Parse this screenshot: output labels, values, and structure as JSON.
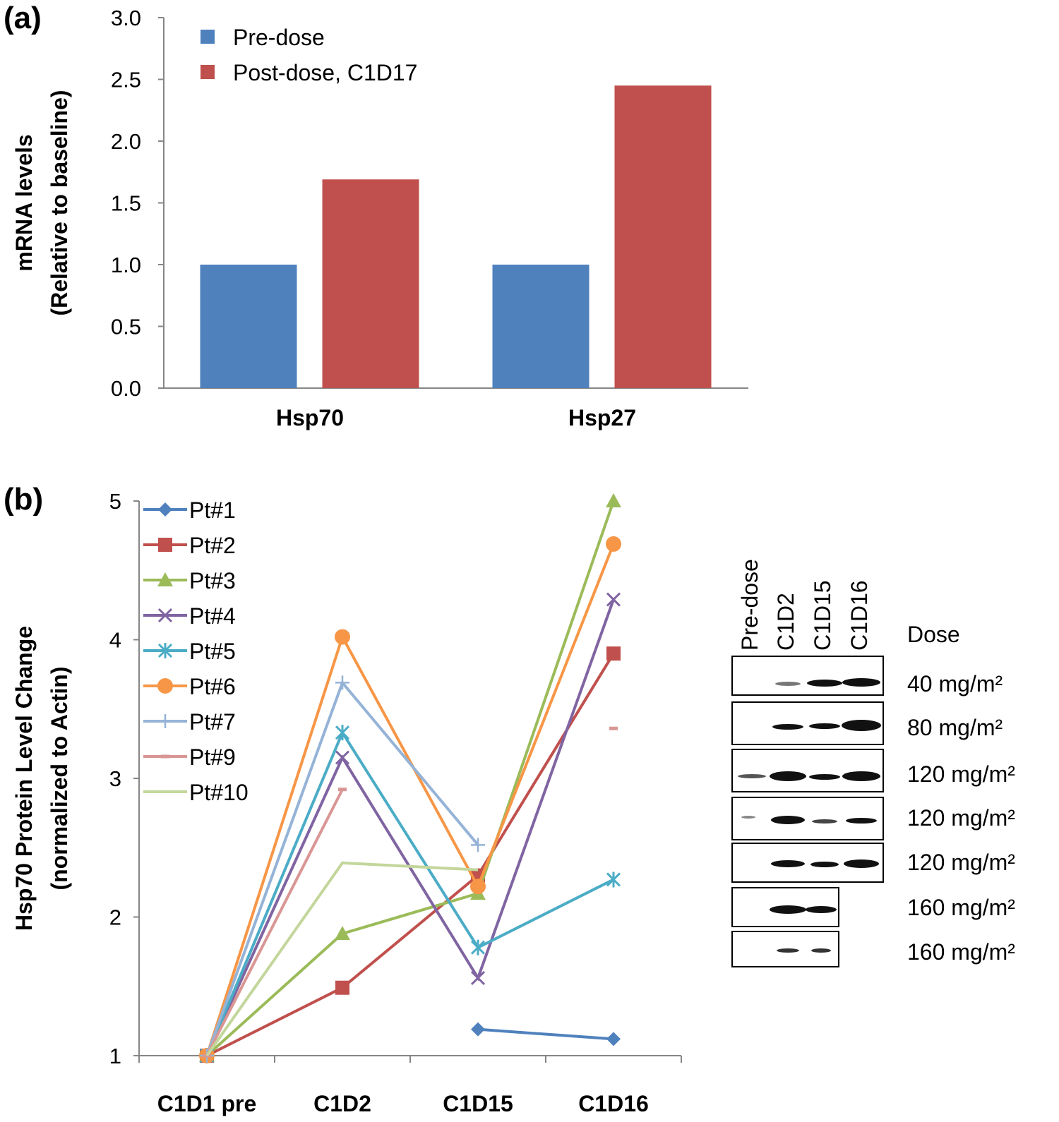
{
  "chart_data": [
    {
      "type": "bar",
      "panel_label": "(a)",
      "y_label": [
        "mRNA levels",
        "(Relative to baseline)"
      ],
      "categories": [
        "Hsp70",
        "Hsp27"
      ],
      "series": [
        {
          "name": "Pre-dose",
          "color": "#4f81bd",
          "values": [
            1.0,
            1.0
          ]
        },
        {
          "name": "Post-dose, C1D17",
          "color": "#c0504d",
          "values": [
            1.69,
            2.45
          ]
        }
      ],
      "ylim": [
        0,
        3
      ],
      "yticks": [
        {
          "value": 0,
          "label": "0.0"
        },
        {
          "value": 0.5,
          "label": "0.5"
        },
        {
          "value": 1,
          "label": "1.0"
        },
        {
          "value": 1.5,
          "label": "1.5"
        },
        {
          "value": 2,
          "label": "2.0"
        },
        {
          "value": 2.5,
          "label": "2.5"
        },
        {
          "value": 3,
          "label": "3.0"
        }
      ]
    },
    {
      "type": "line",
      "panel_label": "(b)",
      "y_label": [
        "Hsp70 Protein Level Change",
        "(normalized to Actin)"
      ],
      "categories": [
        "C1D1 pre",
        "C1D2",
        "C1D15",
        "C1D16"
      ],
      "series": [
        {
          "name": "Pt#1",
          "color": "#4f81bd",
          "marker": "diamond",
          "values": [
            1,
            null,
            1.19,
            1.12
          ]
        },
        {
          "name": "Pt#2",
          "color": "#c0504d",
          "marker": "square",
          "values": [
            1,
            1.49,
            2.3,
            3.9
          ]
        },
        {
          "name": "Pt#3",
          "color": "#9bbb59",
          "marker": "triangle",
          "values": [
            1,
            1.88,
            2.17,
            5.0
          ]
        },
        {
          "name": "Pt#4",
          "color": "#8064a2",
          "marker": "x",
          "values": [
            1,
            3.15,
            1.56,
            4.29
          ]
        },
        {
          "name": "Pt#5",
          "color": "#4bacc6",
          "marker": "star",
          "values": [
            1,
            3.33,
            1.78,
            2.27
          ]
        },
        {
          "name": "Pt#6",
          "color": "#f79646",
          "marker": "circle",
          "values": [
            1,
            4.02,
            2.22,
            4.69
          ]
        },
        {
          "name": "Pt#7",
          "color": "#95b3d7",
          "marker": "plus",
          "values": [
            1,
            3.69,
            2.52,
            null
          ]
        },
        {
          "name": "Pt#9",
          "color": "#d99694",
          "marker": "dash",
          "values": [
            1,
            2.92,
            null,
            3.36
          ]
        },
        {
          "name": "Pt#10",
          "color": "#c3d69b",
          "marker": "none",
          "values": [
            1,
            2.39,
            2.34,
            null
          ]
        }
      ],
      "ylim": [
        1,
        5
      ],
      "yticks": [
        1,
        2,
        3,
        4,
        5
      ]
    }
  ],
  "blot": {
    "lanes": [
      "Pre-dose",
      "C1D2",
      "C1D15",
      "C1D16"
    ],
    "dose_header": "Dose",
    "doses": [
      "40 mg/m²",
      "80 mg/m²",
      "120 mg/m²",
      "120 mg/m²",
      "120 mg/m²",
      "160 mg/m²",
      "160 mg/m²"
    ]
  }
}
